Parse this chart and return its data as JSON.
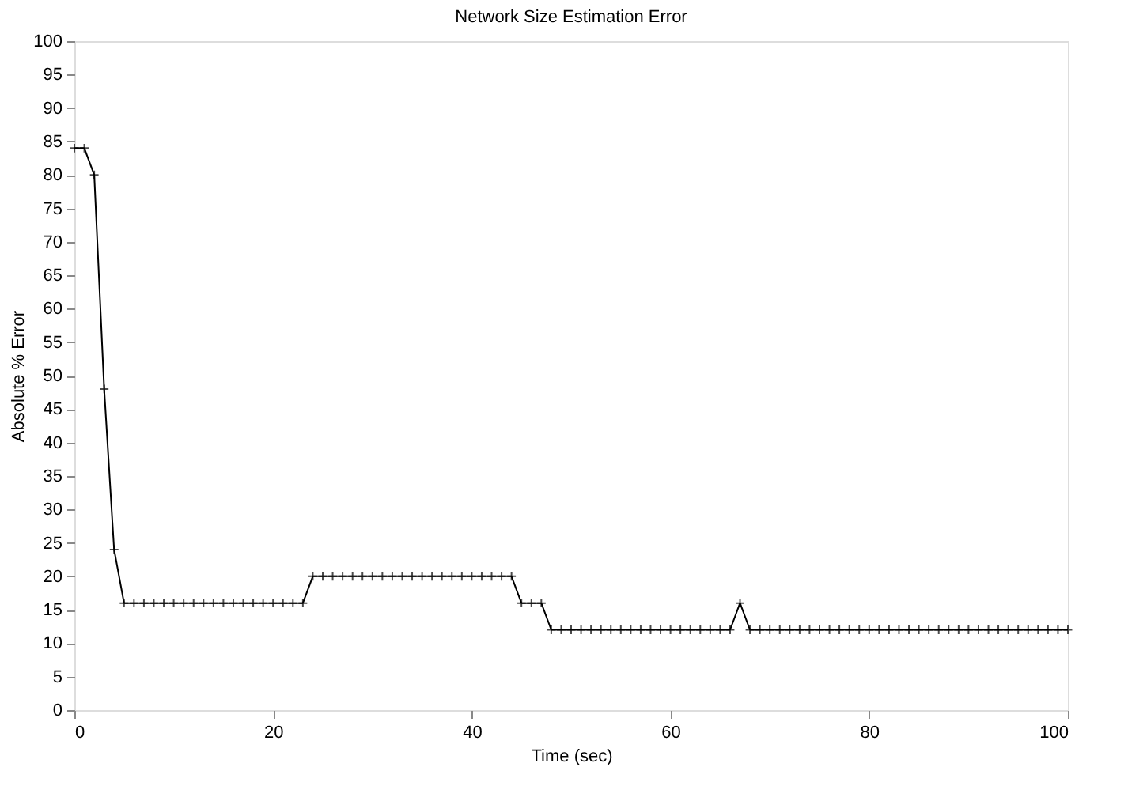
{
  "chart_data": {
    "type": "line",
    "title": "Network Size Estimation Error",
    "xlabel": "Time (sec)",
    "ylabel": "Absolute % Error",
    "x": [
      0,
      1,
      2,
      3,
      4,
      5,
      6,
      7,
      8,
      9,
      10,
      11,
      12,
      13,
      14,
      15,
      16,
      17,
      18,
      19,
      20,
      21,
      22,
      23,
      24,
      25,
      26,
      27,
      28,
      29,
      30,
      31,
      32,
      33,
      34,
      35,
      36,
      37,
      38,
      39,
      40,
      41,
      42,
      43,
      44,
      45,
      46,
      47,
      48,
      49,
      50,
      51,
      52,
      53,
      54,
      55,
      56,
      57,
      58,
      59,
      60,
      61,
      62,
      63,
      64,
      65,
      66,
      67,
      68,
      69,
      70,
      71,
      72,
      73,
      74,
      75,
      76,
      77,
      78,
      79,
      80,
      81,
      82,
      83,
      84,
      85,
      86,
      87,
      88,
      89,
      90,
      91,
      92,
      93,
      94,
      95,
      96,
      97,
      98,
      99,
      100
    ],
    "series": [
      {
        "color": "#000000",
        "values": [
          84,
          84,
          80,
          48,
          24,
          16,
          16,
          16,
          16,
          16,
          16,
          16,
          16,
          16,
          16,
          16,
          16,
          16,
          16,
          16,
          16,
          16,
          16,
          16,
          20,
          20,
          20,
          20,
          20,
          20,
          20,
          20,
          20,
          20,
          20,
          20,
          20,
          20,
          20,
          20,
          20,
          20,
          20,
          20,
          20,
          16,
          16,
          16,
          12,
          12,
          12,
          12,
          12,
          12,
          12,
          12,
          12,
          12,
          12,
          12,
          12,
          12,
          12,
          12,
          12,
          12,
          12,
          16,
          12,
          12,
          12,
          12,
          12,
          12,
          12,
          12,
          12,
          12,
          12,
          12,
          12,
          12,
          12,
          12,
          12,
          12,
          12,
          12,
          12,
          12,
          12,
          12,
          12,
          12,
          12,
          12,
          12,
          12,
          12,
          12,
          12
        ]
      }
    ],
    "xlim": [
      0,
      100
    ],
    "xticks": [
      0,
      20,
      40,
      60,
      80,
      100
    ],
    "ylim": [
      0,
      100
    ],
    "yticks": [
      0,
      5,
      10,
      15,
      20,
      25,
      30,
      35,
      40,
      45,
      50,
      55,
      60,
      65,
      70,
      75,
      80,
      85,
      90,
      95,
      100
    ],
    "grid": false,
    "marker": "cross",
    "line_style": "solid"
  }
}
